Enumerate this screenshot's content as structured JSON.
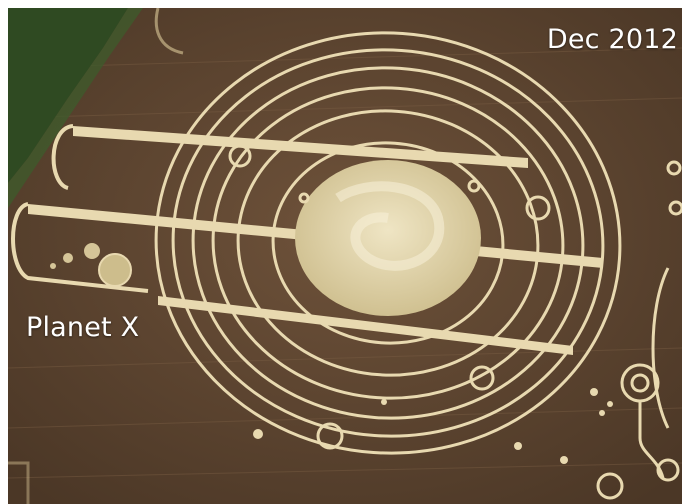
{
  "labels": {
    "date": "Dec 2012",
    "planet": "Planet X"
  },
  "colors": {
    "field": "#5a4330",
    "field_light": "#6b5038",
    "crop_mark": "#e8d9b0",
    "center_disc": "#d9cc9c",
    "hedge": "#2f4a22",
    "text": "#ffffff"
  }
}
